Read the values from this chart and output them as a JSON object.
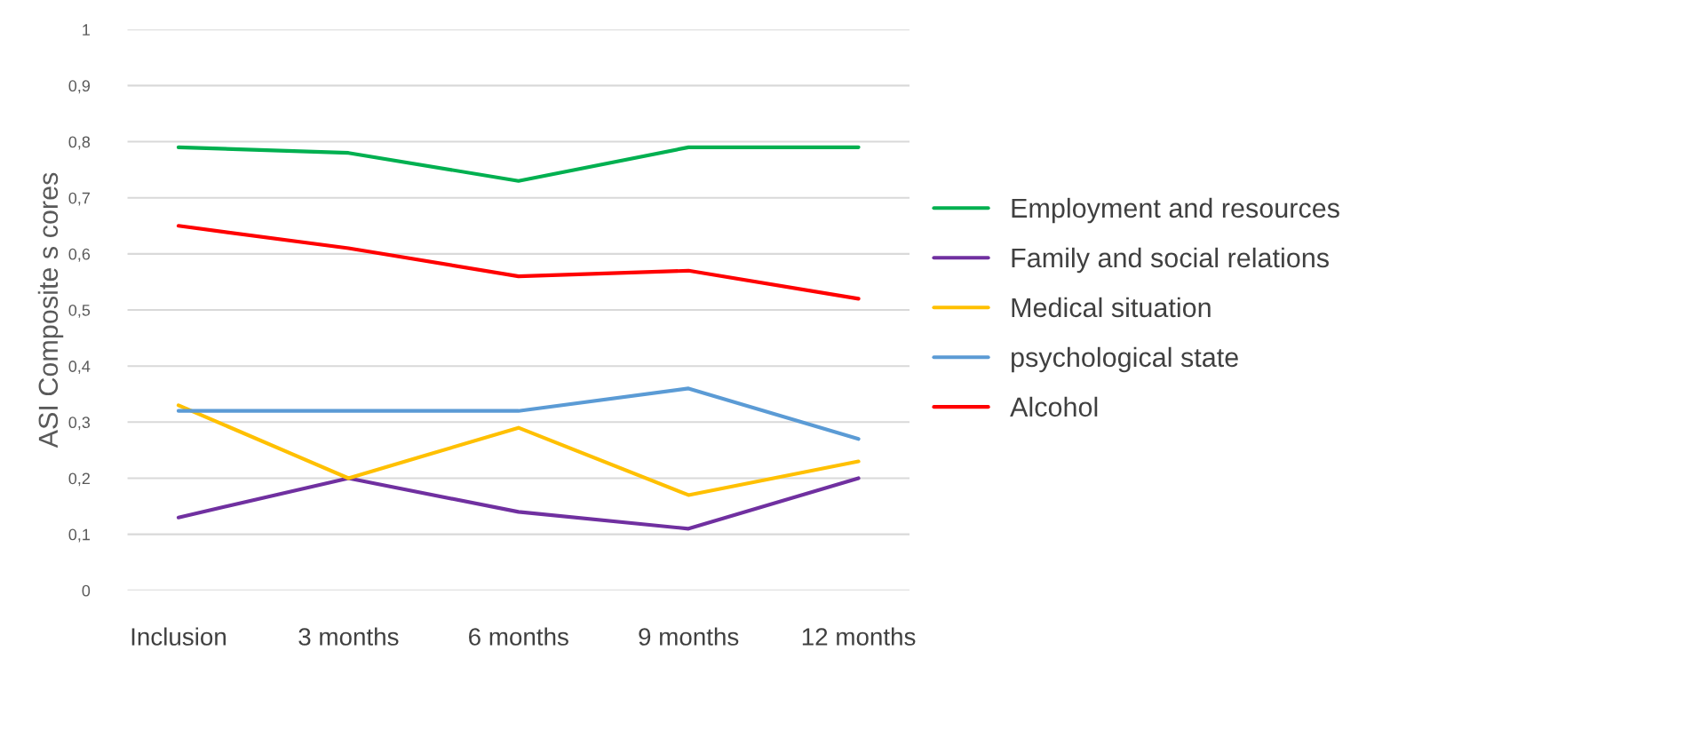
{
  "chart_data": {
    "type": "line",
    "ylabel": "ASI Composite s cores",
    "categories": [
      "Inclusion",
      "3 months",
      "6 months",
      "9 months",
      "12 months"
    ],
    "series": [
      {
        "name": "Employment and resources",
        "color": "#00b050",
        "values": [
          0.79,
          0.78,
          0.73,
          0.79,
          0.79
        ]
      },
      {
        "name": "Family and social relations",
        "color": "#7030a0",
        "values": [
          0.13,
          0.2,
          0.14,
          0.11,
          0.2
        ]
      },
      {
        "name": "Medical situation",
        "color": "#ffc000",
        "values": [
          0.33,
          0.2,
          0.29,
          0.17,
          0.23
        ]
      },
      {
        "name": "psychological state",
        "color": "#5b9bd5",
        "values": [
          0.32,
          0.32,
          0.32,
          0.36,
          0.27
        ]
      },
      {
        "name": "Alcohol",
        "color": "#ff0000",
        "values": [
          0.65,
          0.61,
          0.56,
          0.57,
          0.52
        ]
      }
    ],
    "ylim": [
      0,
      1
    ],
    "yticks": [
      0,
      {
        "value": 0.1,
        "label": "0,1"
      },
      {
        "value": 0.2,
        "label": "0,2"
      },
      {
        "value": 0.3,
        "label": "0,3"
      },
      {
        "value": 0.4,
        "label": "0,4"
      },
      {
        "value": 0.5,
        "label": "0,5"
      },
      {
        "value": 0.6,
        "label": "0,6"
      },
      {
        "value": 0.7,
        "label": "0,7"
      },
      {
        "value": 0.8,
        "label": "0,8"
      },
      {
        "value": 0.9,
        "label": "0,9"
      },
      1
    ],
    "grid": "y",
    "legend": "right",
    "marker": "none",
    "line_style": "solid"
  }
}
